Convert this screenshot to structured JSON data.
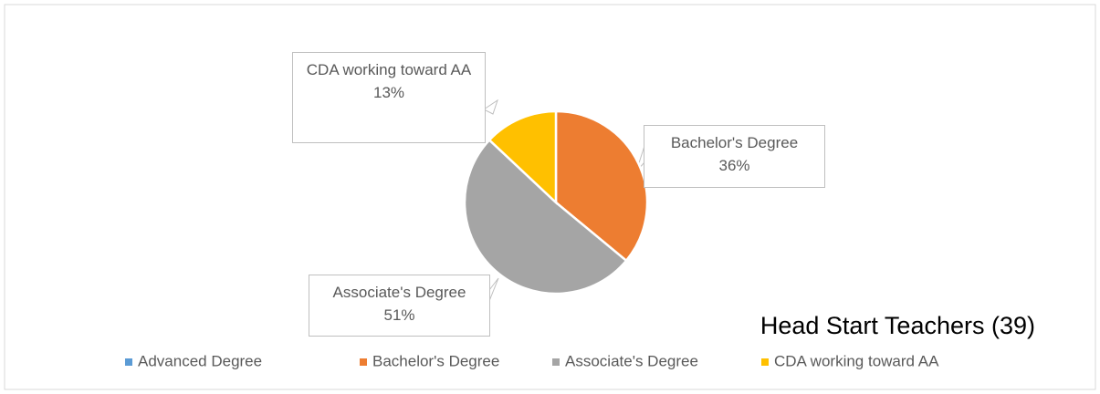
{
  "chart_data": {
    "type": "pie",
    "title": "Head Start Teachers (39)",
    "categories": [
      "Advanced Degree",
      "Bachelor's Degree",
      "Associate's Degree",
      "CDA working toward AA"
    ],
    "values": [
      0,
      36,
      51,
      13
    ],
    "value_labels": [
      null,
      "36%",
      "51%",
      "13%"
    ],
    "colors": [
      "#5b9bd5",
      "#ed7d31",
      "#a5a5a5",
      "#ffc000"
    ],
    "legend": "bottom"
  }
}
